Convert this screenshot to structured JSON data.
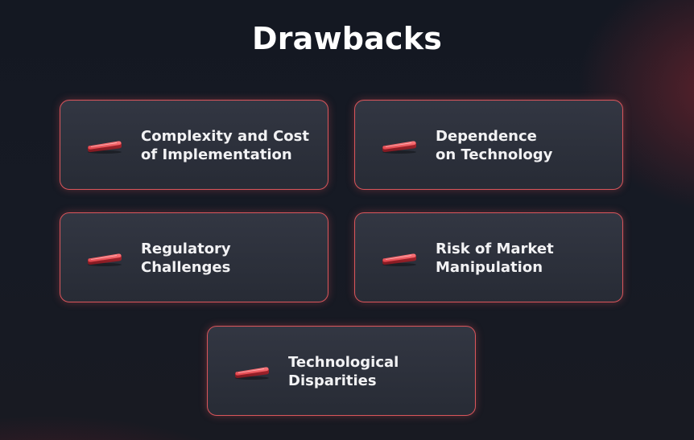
{
  "title": "Drawbacks",
  "accent_color": "#d9545a",
  "icon_name": "red-bar-icon",
  "cards": [
    {
      "line1": "Complexity and Cost",
      "line2": "of Implementation"
    },
    {
      "line1": "Dependence",
      "line2": "on Technology"
    },
    {
      "line1": "Regulatory",
      "line2": "Challenges"
    },
    {
      "line1": "Risk of Market",
      "line2": "Manipulation"
    },
    {
      "line1": "Technological",
      "line2": "Disparities"
    }
  ]
}
